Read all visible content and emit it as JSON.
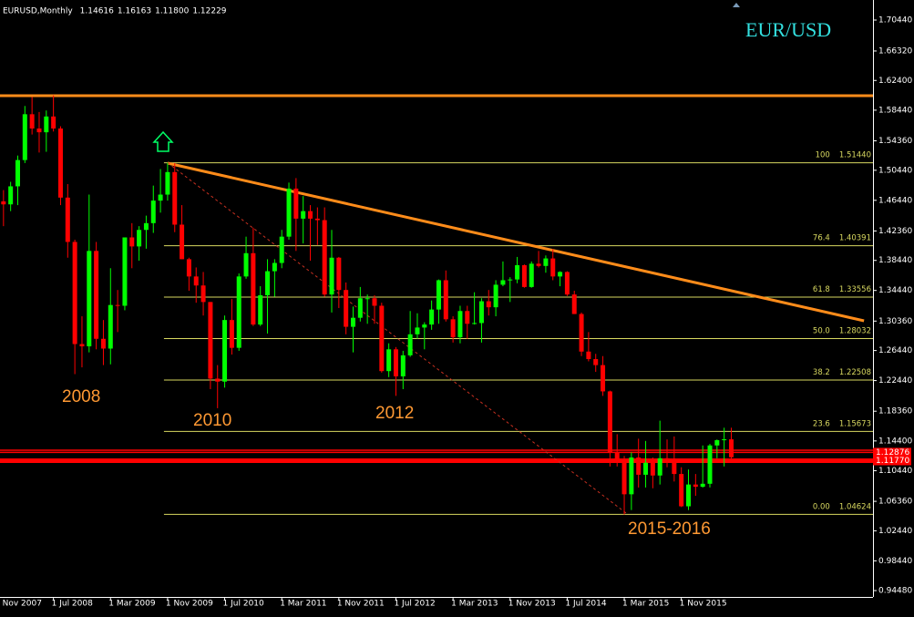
{
  "chart_data": {
    "type": "candlestick",
    "title": "EURUSD,Monthly",
    "header_values": [
      "1.14616",
      "1.16163",
      "1.11800",
      "1.12229"
    ],
    "symbol": "EUR/USD",
    "ylim": [
      0.9363,
      1.7311
    ],
    "yticks": [
      {
        "value": 1.7044,
        "label": "1.70440"
      },
      {
        "value": 1.6632,
        "label": "1.66320"
      },
      {
        "value": 1.624,
        "label": "1.62400"
      },
      {
        "value": 1.5844,
        "label": "1.58440"
      },
      {
        "value": 1.5436,
        "label": "1.54360"
      },
      {
        "value": 1.5044,
        "label": "1.50440"
      },
      {
        "value": 1.4644,
        "label": "1.46440"
      },
      {
        "value": 1.4236,
        "label": "1.42360"
      },
      {
        "value": 1.3844,
        "label": "1.38440"
      },
      {
        "value": 1.3444,
        "label": "1.34440"
      },
      {
        "value": 1.3036,
        "label": "1.30360"
      },
      {
        "value": 1.2644,
        "label": "1.26440"
      },
      {
        "value": 1.2244,
        "label": "1.22440"
      },
      {
        "value": 1.1836,
        "label": "1.18360"
      },
      {
        "value": 1.144,
        "label": "1.14400"
      },
      {
        "value": 1.1044,
        "label": "1.10440"
      },
      {
        "value": 1.0636,
        "label": "1.06360"
      },
      {
        "value": 1.0244,
        "label": "1.02440"
      },
      {
        "value": 0.9844,
        "label": "0.98440"
      },
      {
        "value": 0.9448,
        "label": "0.94480"
      }
    ],
    "categories": [
      "1 Nov 2007",
      null,
      null,
      null,
      null,
      null,
      null,
      null,
      "1 Jul 2008",
      null,
      null,
      null,
      null,
      null,
      null,
      null,
      "1 Mar 2009",
      null,
      null,
      null,
      null,
      null,
      null,
      null,
      "1 Nov 2009",
      null,
      null,
      null,
      null,
      null,
      null,
      null,
      "1 Jul 2010",
      null,
      null,
      null,
      null,
      null,
      null,
      null,
      "1 Mar 2011",
      null,
      null,
      null,
      null,
      null,
      null,
      null,
      "1 Nov 2011",
      null,
      null,
      null,
      null,
      null,
      null,
      null,
      "1 Jul 2012",
      null,
      null,
      null,
      null,
      null,
      null,
      null,
      "1 Mar 2013",
      null,
      null,
      null,
      null,
      null,
      null,
      null,
      "1 Nov 2013",
      null,
      null,
      null,
      null,
      null,
      null,
      null,
      "1 Jul 2014",
      null,
      null,
      null,
      null,
      null,
      null,
      null,
      "1 Mar 2015",
      null,
      null,
      null,
      null,
      null,
      null,
      null,
      "1 Nov 2015",
      null,
      null,
      null,
      null,
      null,
      null,
      null
    ],
    "up_color": "#00ff00",
    "down_color": "#ff0000",
    "ohlc": [
      [
        1.447,
        1.4966,
        1.442,
        1.463
      ],
      [
        1.463,
        1.478,
        1.43,
        1.459
      ],
      [
        1.459,
        1.489,
        1.45,
        1.483
      ],
      [
        1.483,
        1.524,
        1.458,
        1.518
      ],
      [
        1.518,
        1.59,
        1.514,
        1.579
      ],
      [
        1.579,
        1.602,
        1.552,
        1.56
      ],
      [
        1.56,
        1.582,
        1.528,
        1.555
      ],
      [
        1.555,
        1.584,
        1.529,
        1.576
      ],
      [
        1.576,
        1.604,
        1.556,
        1.56
      ],
      [
        1.56,
        1.563,
        1.458,
        1.468
      ],
      [
        1.468,
        1.486,
        1.388,
        1.409
      ],
      [
        1.409,
        1.412,
        1.233,
        1.273
      ],
      [
        1.273,
        1.31,
        1.242,
        1.27
      ],
      [
        1.27,
        1.472,
        1.262,
        1.397
      ],
      [
        1.397,
        1.409,
        1.266,
        1.28
      ],
      [
        1.28,
        1.305,
        1.245,
        1.267
      ],
      [
        1.267,
        1.374,
        1.246,
        1.325
      ],
      [
        1.325,
        1.345,
        1.289,
        1.324
      ],
      [
        1.324,
        1.415,
        1.318,
        1.415
      ],
      [
        1.415,
        1.434,
        1.374,
        1.403
      ],
      [
        1.403,
        1.43,
        1.384,
        1.425
      ],
      [
        1.425,
        1.444,
        1.4,
        1.434
      ],
      [
        1.434,
        1.484,
        1.421,
        1.464
      ],
      [
        1.464,
        1.506,
        1.448,
        1.472
      ],
      [
        1.472,
        1.5144,
        1.464,
        1.502
      ],
      [
        1.502,
        1.514,
        1.422,
        1.432
      ],
      [
        1.432,
        1.458,
        1.386,
        1.386
      ],
      [
        1.386,
        1.388,
        1.344,
        1.363
      ],
      [
        1.363,
        1.375,
        1.328,
        1.351
      ],
      [
        1.351,
        1.369,
        1.311,
        1.329
      ],
      [
        1.329,
        1.329,
        1.213,
        1.227
      ],
      [
        1.227,
        1.245,
        1.1876,
        1.223
      ],
      [
        1.223,
        1.311,
        1.215,
        1.305
      ],
      [
        1.305,
        1.333,
        1.259,
        1.268
      ],
      [
        1.268,
        1.367,
        1.264,
        1.363
      ],
      [
        1.363,
        1.416,
        1.36,
        1.394
      ],
      [
        1.394,
        1.428,
        1.297,
        1.299
      ],
      [
        1.299,
        1.35,
        1.297,
        1.338
      ],
      [
        1.338,
        1.386,
        1.287,
        1.37
      ],
      [
        1.37,
        1.386,
        1.336,
        1.381
      ],
      [
        1.381,
        1.425,
        1.374,
        1.416
      ],
      [
        1.416,
        1.488,
        1.412,
        1.48
      ],
      [
        1.48,
        1.494,
        1.397,
        1.44
      ],
      [
        1.44,
        1.47,
        1.407,
        1.45
      ],
      [
        1.45,
        1.458,
        1.384,
        1.44
      ],
      [
        1.44,
        1.455,
        1.405,
        1.438
      ],
      [
        1.438,
        1.455,
        1.336,
        1.339
      ],
      [
        1.339,
        1.425,
        1.315,
        1.388
      ],
      [
        1.388,
        1.389,
        1.321,
        1.345
      ],
      [
        1.345,
        1.355,
        1.286,
        1.296
      ],
      [
        1.296,
        1.323,
        1.262,
        1.308
      ],
      [
        1.308,
        1.349,
        1.303,
        1.334
      ],
      [
        1.334,
        1.339,
        1.3,
        1.334
      ],
      [
        1.334,
        1.338,
        1.3,
        1.324
      ],
      [
        1.324,
        1.328,
        1.235,
        1.237
      ],
      [
        1.237,
        1.274,
        1.229,
        1.266
      ],
      [
        1.266,
        1.269,
        1.204,
        1.23
      ],
      [
        1.23,
        1.264,
        1.213,
        1.258
      ],
      [
        1.258,
        1.317,
        1.256,
        1.286
      ],
      [
        1.286,
        1.314,
        1.28,
        1.295
      ],
      [
        1.295,
        1.302,
        1.266,
        1.299
      ],
      [
        1.299,
        1.331,
        1.292,
        1.319
      ],
      [
        1.319,
        1.359,
        1.3,
        1.358
      ],
      [
        1.358,
        1.371,
        1.303,
        1.306
      ],
      [
        1.306,
        1.31,
        1.275,
        1.282
      ],
      [
        1.282,
        1.324,
        1.274,
        1.317
      ],
      [
        1.317,
        1.324,
        1.28,
        1.3
      ],
      [
        1.3,
        1.342,
        1.299,
        1.301
      ],
      [
        1.301,
        1.334,
        1.275,
        1.33
      ],
      [
        1.33,
        1.345,
        1.311,
        1.322
      ],
      [
        1.322,
        1.358,
        1.31,
        1.352
      ],
      [
        1.352,
        1.383,
        1.35,
        1.358
      ],
      [
        1.358,
        1.362,
        1.329,
        1.359
      ],
      [
        1.359,
        1.389,
        1.354,
        1.378
      ],
      [
        1.378,
        1.379,
        1.348,
        1.349
      ],
      [
        1.349,
        1.383,
        1.348,
        1.38
      ],
      [
        1.38,
        1.397,
        1.375,
        1.377
      ],
      [
        1.377,
        1.391,
        1.368,
        1.387
      ],
      [
        1.387,
        1.3995,
        1.358,
        1.363
      ],
      [
        1.363,
        1.37,
        1.35,
        1.369
      ],
      [
        1.369,
        1.37,
        1.337,
        1.339
      ],
      [
        1.339,
        1.344,
        1.313,
        1.313
      ],
      [
        1.313,
        1.315,
        1.257,
        1.263
      ],
      [
        1.263,
        1.289,
        1.25,
        1.253
      ],
      [
        1.253,
        1.26,
        1.236,
        1.245
      ],
      [
        1.245,
        1.257,
        1.204,
        1.21
      ],
      [
        1.21,
        1.211,
        1.11,
        1.129
      ],
      [
        1.129,
        1.153,
        1.11,
        1.12
      ],
      [
        1.12,
        1.124,
        1.046,
        1.073
      ],
      [
        1.073,
        1.129,
        1.052,
        1.122
      ],
      [
        1.122,
        1.147,
        1.082,
        1.099
      ],
      [
        1.099,
        1.144,
        1.082,
        1.115
      ],
      [
        1.115,
        1.122,
        1.081,
        1.098
      ],
      [
        1.098,
        1.171,
        1.086,
        1.121
      ],
      [
        1.121,
        1.146,
        1.109,
        1.118
      ],
      [
        1.118,
        1.15,
        1.09,
        1.1
      ],
      [
        1.1,
        1.109,
        1.056,
        1.057
      ],
      [
        1.057,
        1.106,
        1.052,
        1.086
      ],
      [
        1.086,
        1.1,
        1.071,
        1.083
      ],
      [
        1.083,
        1.138,
        1.082,
        1.087
      ],
      [
        1.087,
        1.14,
        1.082,
        1.138
      ],
      [
        1.138,
        1.146,
        1.121,
        1.145
      ],
      [
        1.145,
        1.1616,
        1.11,
        1.1462
      ],
      [
        1.14616,
        1.16163,
        1.118,
        1.12229
      ]
    ],
    "fibonacci": {
      "start": 24,
      "color": "#d8d860",
      "levels": [
        {
          "ratio": "100",
          "price": 1.5144,
          "price_label": "1.51440"
        },
        {
          "ratio": "76.4",
          "price": 1.40391,
          "price_label": "1.40391"
        },
        {
          "ratio": "61.8",
          "price": 1.33556,
          "price_label": "1.33556"
        },
        {
          "ratio": "50.0",
          "price": 1.28032,
          "price_label": "1.28032"
        },
        {
          "ratio": "38.2",
          "price": 1.22508,
          "price_label": "1.22508"
        },
        {
          "ratio": "23.6",
          "price": 1.15673,
          "price_label": "1.15673"
        },
        {
          "ratio": "0.00",
          "price": 1.04624,
          "price_label": "1.04624"
        }
      ]
    },
    "hlines": [
      {
        "price": 1.6037,
        "color": "#ff8c1a",
        "width": 3
      },
      {
        "price": 1.1317,
        "color": "#ff0000",
        "width": 1.5
      },
      {
        "price": 1.12876,
        "label": "1.12876",
        "color": "#ff0000",
        "width": 1.5
      },
      {
        "price": 1.1177,
        "label": "1.11770",
        "color": "#ff0000",
        "width": 5
      }
    ],
    "trendlines": [
      {
        "x": [
          24,
          121.6
        ],
        "y": [
          1.5139,
          1.304
        ],
        "color": "#ff8c1a",
        "width": 3,
        "dash": false
      },
      {
        "x": [
          24,
          88.5
        ],
        "y": [
          1.5144,
          1.0462
        ],
        "color": "#c83020",
        "width": 1,
        "dash": true
      }
    ],
    "annotations": [
      "2008",
      "2010",
      "2012",
      "2015-2016"
    ]
  }
}
